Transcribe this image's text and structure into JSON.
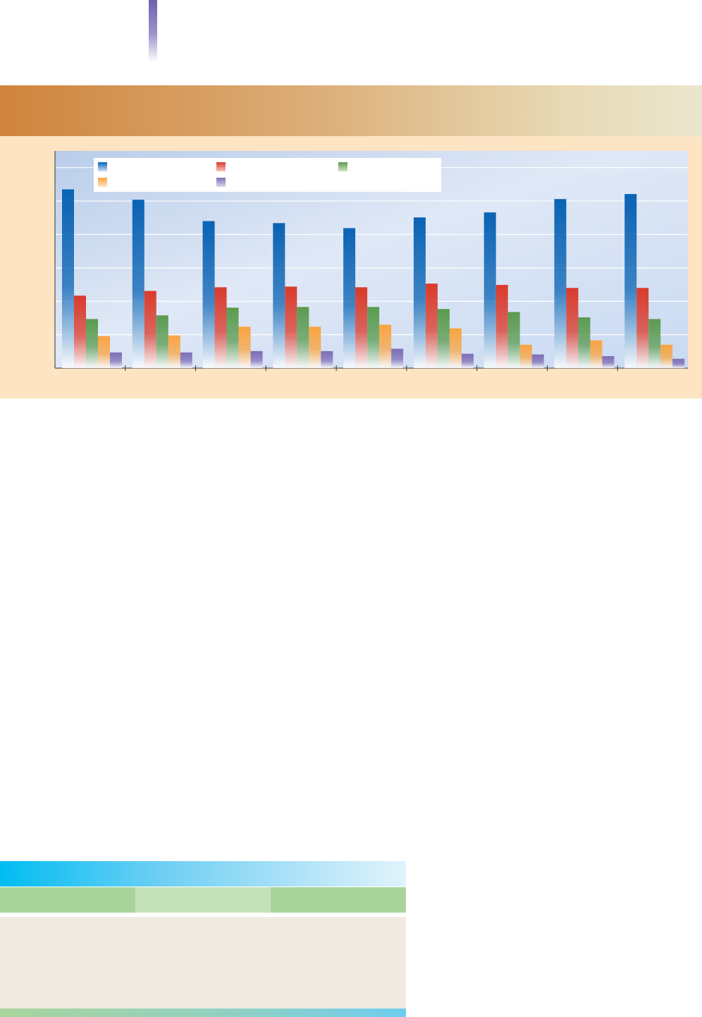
{
  "colors": {
    "accent": "#6e62ad",
    "header_band_start": "#cf843c",
    "chart_panel_background": "#fde4c3",
    "plot_background": "#c9daf2",
    "table_title_bar": "#00bdf2",
    "table_header": "#a8d49a",
    "table_body": "#efebe0"
  },
  "legend": {
    "entries": [
      {
        "label": "",
        "color": "#0a63b4"
      },
      {
        "label": "",
        "color": "#d93a2b"
      },
      {
        "label": "",
        "color": "#5a9b4f"
      },
      {
        "label": "",
        "color": "#f9a441"
      },
      {
        "label": "",
        "color": "#7d6db6"
      }
    ]
  },
  "table": {
    "title": "",
    "headers": [
      "",
      "",
      ""
    ],
    "rows": []
  },
  "chart_data": {
    "type": "bar",
    "title": "",
    "xlabel": "",
    "ylabel": "",
    "categories": [
      "",
      "",
      "",
      "",
      "",
      "",
      "",
      "",
      ""
    ],
    "ylim": [
      0,
      65
    ],
    "grid": true,
    "legend_position": "top-left",
    "series": [
      {
        "color": "#0a63b4",
        "values": [
          53.5,
          50.4,
          44.0,
          43.4,
          41.9,
          45.1,
          46.6,
          50.6,
          52.1
        ]
      },
      {
        "color": "#d93a2b",
        "values": [
          21.7,
          23.1,
          24.2,
          24.4,
          24.2,
          25.3,
          24.9,
          24.0,
          24.0
        ]
      },
      {
        "color": "#5a9b4f",
        "values": [
          14.7,
          15.8,
          18.1,
          18.3,
          18.3,
          17.7,
          16.8,
          15.2,
          14.7
        ]
      },
      {
        "color": "#f9a441",
        "values": [
          9.6,
          9.8,
          12.4,
          12.4,
          13.0,
          11.9,
          7.0,
          8.3,
          7.0
        ]
      },
      {
        "color": "#7d6db6",
        "values": [
          4.7,
          4.7,
          5.1,
          5.1,
          5.8,
          4.3,
          4.1,
          3.6,
          2.8
        ]
      }
    ]
  }
}
